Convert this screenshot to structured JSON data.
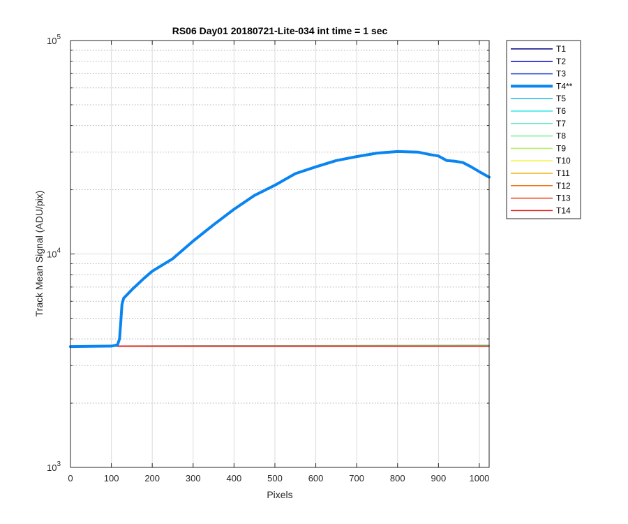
{
  "chart_data": {
    "type": "line",
    "title": "RS06 Day01 20180721-Lite-034 int time = 1 sec",
    "xlabel": "Pixels",
    "ylabel": "Track Mean Signal (ADU/pix)",
    "xlim": [
      0,
      1024
    ],
    "ylim": [
      1000,
      100000
    ],
    "yscale": "log",
    "grid": true,
    "legend_position": "outside-right-top",
    "xticks": [
      0,
      100,
      200,
      300,
      400,
      500,
      600,
      700,
      800,
      900,
      1000
    ],
    "xtick_labels": [
      "0",
      "100",
      "200",
      "300",
      "400",
      "500",
      "600",
      "700",
      "800",
      "900",
      "1000"
    ],
    "yticks": [
      1000,
      10000,
      100000
    ],
    "ytick_labels": [
      {
        "base": "10",
        "exp": "3"
      },
      {
        "base": "10",
        "exp": "4"
      },
      {
        "base": "10",
        "exp": "5"
      }
    ],
    "series": [
      {
        "name": "T1",
        "color": "#000080",
        "x": [
          0,
          1024
        ],
        "y": [
          3700,
          3700
        ]
      },
      {
        "name": "T2",
        "color": "#0000C8",
        "x": [
          0,
          1024
        ],
        "y": [
          3700,
          3700
        ]
      },
      {
        "name": "T3",
        "color": "#1E46D2",
        "x": [
          0,
          1024
        ],
        "y": [
          3700,
          3700
        ]
      },
      {
        "name": "T4**",
        "color": "#0A84F0",
        "highlight": true,
        "x": [
          0,
          100,
          115,
          120,
          123,
          126,
          130,
          150,
          180,
          200,
          250,
          300,
          350,
          400,
          450,
          500,
          550,
          600,
          650,
          700,
          750,
          800,
          850,
          880,
          900,
          920,
          940,
          960,
          980,
          1000,
          1024
        ],
        "y": [
          3680,
          3700,
          3750,
          4000,
          4800,
          5800,
          6200,
          6800,
          7700,
          8300,
          9500,
          11500,
          13700,
          16200,
          18800,
          21000,
          23800,
          25600,
          27400,
          28600,
          29700,
          30200,
          30000,
          29200,
          28800,
          27400,
          27200,
          26800,
          25600,
          24300,
          22900
        ]
      },
      {
        "name": "T5",
        "color": "#1EB4E6",
        "x": [
          0,
          1024
        ],
        "y": [
          3700,
          3720
        ]
      },
      {
        "name": "T6",
        "color": "#32E6E6",
        "x": [
          0,
          1024
        ],
        "y": [
          3700,
          3730
        ]
      },
      {
        "name": "T7",
        "color": "#64E6C8",
        "x": [
          0,
          1024
        ],
        "y": [
          3700,
          3740
        ]
      },
      {
        "name": "T8",
        "color": "#78F096",
        "x": [
          0,
          1024
        ],
        "y": [
          3700,
          3720
        ]
      },
      {
        "name": "T9",
        "color": "#B4F064",
        "x": [
          0,
          1024
        ],
        "y": [
          3700,
          3710
        ]
      },
      {
        "name": "T10",
        "color": "#F0F032",
        "x": [
          0,
          1024
        ],
        "y": [
          3700,
          3700
        ]
      },
      {
        "name": "T11",
        "color": "#F0B41E",
        "x": [
          0,
          1024
        ],
        "y": [
          3700,
          3700
        ]
      },
      {
        "name": "T12",
        "color": "#F0781E",
        "x": [
          0,
          1024
        ],
        "y": [
          3700,
          3700
        ]
      },
      {
        "name": "T13",
        "color": "#F03C14",
        "x": [
          0,
          1024
        ],
        "y": [
          3700,
          3700
        ]
      },
      {
        "name": "T14",
        "color": "#E61414",
        "x": [
          0,
          1024
        ],
        "y": [
          3700,
          3700
        ]
      }
    ]
  }
}
